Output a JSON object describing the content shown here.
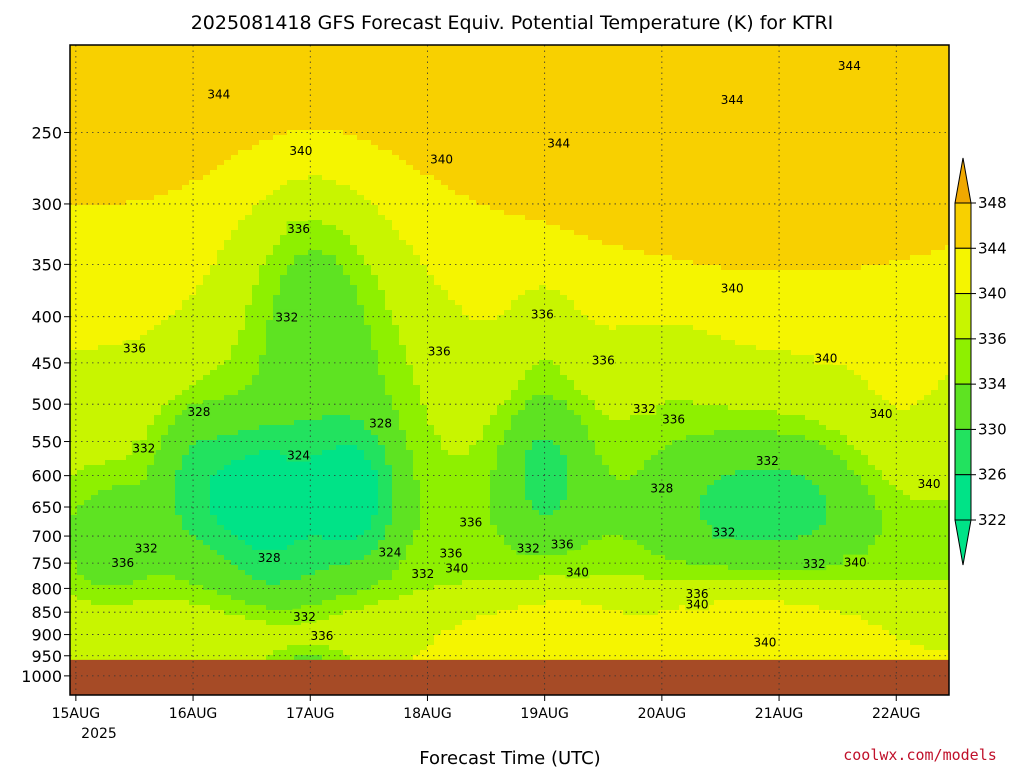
{
  "chart_data": {
    "type": "heatmap",
    "title": "2025081418 GFS Forecast Equiv. Potential Temperature (K) for KTRI",
    "xlabel": "Forecast Time (UTC)",
    "ylabel": "",
    "x_ticks": [
      "15AUG",
      "16AUG",
      "17AUG",
      "18AUG",
      "19AUG",
      "20AUG",
      "21AUG",
      "22AUG"
    ],
    "x_year_label": "2025",
    "x_start": "15AUG",
    "x_range_days": [
      -0.05,
      7.45
    ],
    "y_ticks": [
      250,
      300,
      350,
      400,
      450,
      500,
      550,
      600,
      650,
      700,
      750,
      800,
      850,
      900,
      950,
      1000
    ],
    "y_range_hpa": [
      200,
      1050
    ],
    "y_scale": "log",
    "colorbar_levels": [
      322,
      326,
      330,
      334,
      336,
      340,
      344,
      348
    ],
    "colorbar_colors": [
      "#00e387",
      "#22e25f",
      "#5ee322",
      "#8ef000",
      "#c8f500",
      "#f5f500",
      "#f8d000",
      "#f0a800"
    ],
    "ground_color": "#a64b26",
    "ground_from_hpa": 960,
    "grid": true,
    "contour_labels": [
      {
        "t": 1.22,
        "p": 227,
        "v": "344"
      },
      {
        "t": 4.12,
        "p": 257,
        "v": "344"
      },
      {
        "t": 5.6,
        "p": 230,
        "v": "344"
      },
      {
        "t": 6.6,
        "p": 211,
        "v": "344"
      },
      {
        "t": 1.92,
        "p": 262,
        "v": "340"
      },
      {
        "t": 3.12,
        "p": 268,
        "v": "340"
      },
      {
        "t": 5.6,
        "p": 372,
        "v": "340"
      },
      {
        "t": 6.4,
        "p": 445,
        "v": "340"
      },
      {
        "t": 6.87,
        "p": 513,
        "v": "340"
      },
      {
        "t": 7.28,
        "p": 613,
        "v": "340"
      },
      {
        "t": 6.65,
        "p": 749,
        "v": "340"
      },
      {
        "t": 3.25,
        "p": 760,
        "v": "340"
      },
      {
        "t": 4.28,
        "p": 768,
        "v": "340"
      },
      {
        "t": 5.3,
        "p": 833,
        "v": "340"
      },
      {
        "t": 5.88,
        "p": 918,
        "v": "340"
      },
      {
        "t": 1.9,
        "p": 320,
        "v": "336"
      },
      {
        "t": 0.5,
        "p": 434,
        "v": "336"
      },
      {
        "t": 3.1,
        "p": 437,
        "v": "336"
      },
      {
        "t": 3.98,
        "p": 398,
        "v": "336"
      },
      {
        "t": 4.5,
        "p": 447,
        "v": "336"
      },
      {
        "t": 5.1,
        "p": 520,
        "v": "336"
      },
      {
        "t": 3.37,
        "p": 676,
        "v": "336"
      },
      {
        "t": 4.15,
        "p": 715,
        "v": "336"
      },
      {
        "t": 3.2,
        "p": 732,
        "v": "336"
      },
      {
        "t": 0.4,
        "p": 750,
        "v": "336"
      },
      {
        "t": 5.3,
        "p": 811,
        "v": "336"
      },
      {
        "t": 2.1,
        "p": 903,
        "v": "336"
      },
      {
        "t": 1.8,
        "p": 401,
        "v": "332"
      },
      {
        "t": 0.58,
        "p": 560,
        "v": "332"
      },
      {
        "t": 4.85,
        "p": 506,
        "v": "332"
      },
      {
        "t": 5.9,
        "p": 578,
        "v": "332"
      },
      {
        "t": 5.53,
        "p": 694,
        "v": "332"
      },
      {
        "t": 0.6,
        "p": 723,
        "v": "332"
      },
      {
        "t": 3.86,
        "p": 723,
        "v": "332"
      },
      {
        "t": 6.3,
        "p": 752,
        "v": "332"
      },
      {
        "t": 2.96,
        "p": 771,
        "v": "332"
      },
      {
        "t": 1.95,
        "p": 860,
        "v": "332"
      },
      {
        "t": 1.05,
        "p": 510,
        "v": "328"
      },
      {
        "t": 2.6,
        "p": 525,
        "v": "328"
      },
      {
        "t": 5.0,
        "p": 620,
        "v": "328"
      },
      {
        "t": 1.65,
        "p": 740,
        "v": "328"
      },
      {
        "t": 1.9,
        "p": 570,
        "v": "324"
      },
      {
        "t": 2.68,
        "p": 730,
        "v": "324"
      }
    ]
  },
  "credit": "coolwx.com/models"
}
